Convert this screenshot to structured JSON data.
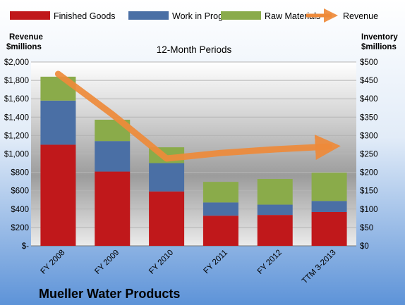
{
  "chart_data": {
    "type": "bar",
    "subtitle": "12-Month Periods",
    "company": "Mueller Water Products",
    "left_axis": {
      "label_line1": "Revenue",
      "label_line2": "$millions",
      "ylim": [
        0,
        2000
      ],
      "ticks": [
        "$-",
        "$200",
        "$400",
        "$600",
        "$800",
        "$1,000",
        "$1,200",
        "$1,400",
        "$1,600",
        "$1,800",
        "$2,000"
      ]
    },
    "right_axis": {
      "label_line1": "Inventory",
      "label_line2": "$millions",
      "ylim": [
        0,
        500
      ],
      "ticks": [
        "$0",
        "$50",
        "$100",
        "$150",
        "$200",
        "$250",
        "$300",
        "$350",
        "$400",
        "$450",
        "$500"
      ]
    },
    "categories": [
      "FY 2008",
      "FY 2009",
      "FY 2010",
      "FY 2011",
      "FY 2012",
      "TTM 3-2013"
    ],
    "stacked_series": [
      {
        "name": "Finished Goods",
        "color": "#c0181b",
        "axis": "right",
        "values": [
          275,
          202,
          148,
          82,
          84,
          92
        ]
      },
      {
        "name": "Work in Progress",
        "color": "#4a6fa5",
        "axis": "right",
        "values": [
          120,
          83,
          77,
          36,
          28,
          30
        ]
      },
      {
        "name": "Raw Materials",
        "color": "#8aab4a",
        "axis": "right",
        "values": [
          65,
          58,
          43,
          56,
          70,
          77
        ]
      }
    ],
    "line_series": {
      "name": "Revenue",
      "color": "#f0852d",
      "axis": "left",
      "values": [
        1870,
        1430,
        950,
        1010,
        1050,
        1080
      ]
    },
    "grid": true,
    "legend_position": "top"
  }
}
